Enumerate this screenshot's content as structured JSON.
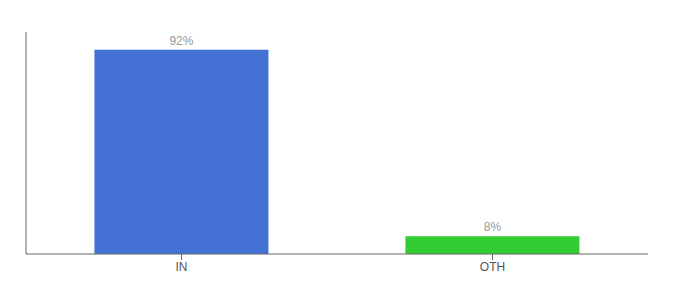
{
  "chart_data": {
    "type": "bar",
    "categories": [
      "IN",
      "OTH"
    ],
    "values": [
      92,
      8
    ],
    "colors": [
      "#4472d4",
      "#33cc33"
    ],
    "value_labels": [
      "92%",
      "8%"
    ],
    "data_labels": true,
    "ylim": [
      0,
      100
    ],
    "tick_labels": "x"
  }
}
